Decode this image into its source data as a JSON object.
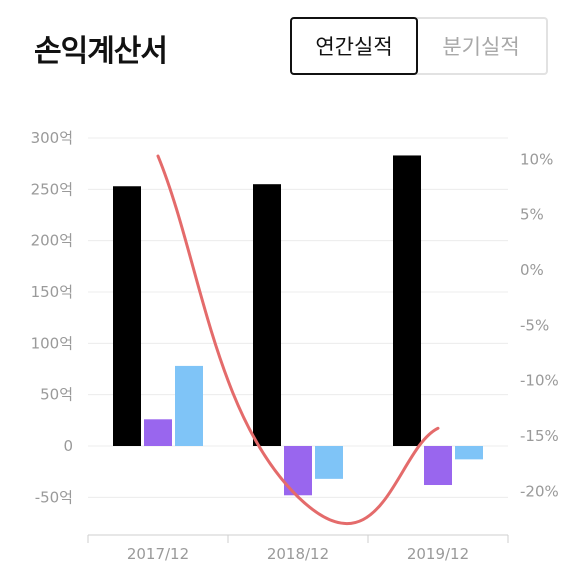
{
  "header": {
    "title": "손익계산서",
    "tabs": [
      {
        "label": "연간실적",
        "selected": true
      },
      {
        "label": "분기실적",
        "selected": false
      }
    ]
  },
  "chart_data": {
    "type": "bar",
    "categories": [
      "2017/12",
      "2018/12",
      "2019/12"
    ],
    "series": [
      {
        "type": "bar",
        "axis": "left",
        "color": "#000000",
        "values": [
          253,
          255,
          283
        ]
      },
      {
        "type": "bar",
        "axis": "left",
        "color": "#9966ee",
        "values": [
          26,
          -48,
          -38
        ]
      },
      {
        "type": "bar",
        "axis": "left",
        "color": "#7fc4f7",
        "values": [
          78,
          -32,
          -13
        ]
      },
      {
        "type": "line",
        "axis": "right",
        "color": "#e46b6b",
        "values": [
          10.3,
          -20.5,
          -14.3
        ]
      }
    ],
    "left_axis": {
      "ylim": [
        -50,
        300
      ],
      "ticks": [
        {
          "v": 300,
          "label": "300억"
        },
        {
          "v": 250,
          "label": "250억"
        },
        {
          "v": 200,
          "label": "200억"
        },
        {
          "v": 150,
          "label": "150억"
        },
        {
          "v": 100,
          "label": "100억"
        },
        {
          "v": 50,
          "label": "50억"
        },
        {
          "v": 0,
          "label": "0"
        },
        {
          "v": -50,
          "label": "-50억"
        }
      ]
    },
    "right_axis": {
      "ylim": [
        -20,
        10
      ],
      "ticks": [
        {
          "v": 10,
          "label": "10%"
        },
        {
          "v": 5,
          "label": "5%"
        },
        {
          "v": 0,
          "label": "0%"
        },
        {
          "v": -5,
          "label": "-5%"
        },
        {
          "v": -10,
          "label": "-10%"
        },
        {
          "v": -15,
          "label": "-15%"
        },
        {
          "v": -20,
          "label": "-20%"
        }
      ]
    },
    "grid": true,
    "legend": "none"
  }
}
